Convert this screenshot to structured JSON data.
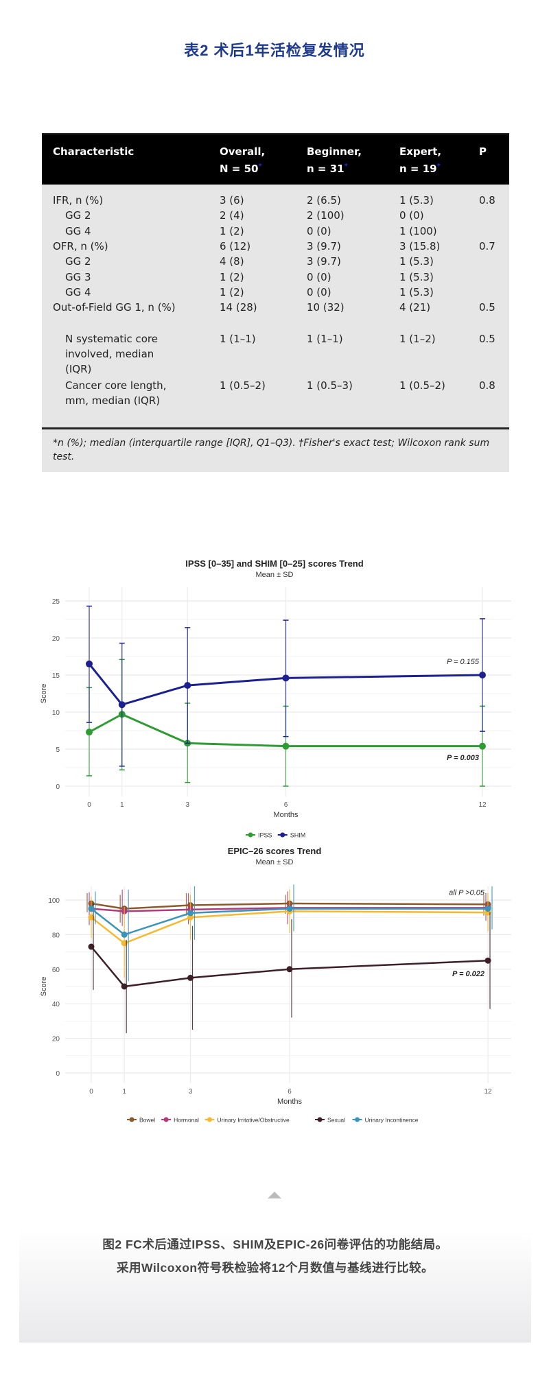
{
  "title": "表2  术后1年活检复发情况",
  "table": {
    "headers": [
      {
        "l1": "Characteristic",
        "l2": ""
      },
      {
        "l1": "Overall,",
        "l2": "N = 50",
        "mark": "*"
      },
      {
        "l1": "Beginner,",
        "l2": "n = 31",
        "mark": "*"
      },
      {
        "l1": "Expert,",
        "l2": "n = 19",
        "mark": "*"
      },
      {
        "l1": "P",
        "l2": "",
        "mark": "†"
      }
    ],
    "rows": [
      {
        "c": "IFR, n (%)",
        "o": "3 (6)",
        "b": "2 (6.5)",
        "e": "1 (5.3)",
        "p": "0.8",
        "indent": 0
      },
      {
        "c": "GG 2",
        "o": "2 (4)",
        "b": "2 (100)",
        "e": "0 (0)",
        "p": "",
        "indent": 1
      },
      {
        "c": "GG 4",
        "o": "1 (2)",
        "b": "0 (0)",
        "e": "1 (100)",
        "p": "",
        "indent": 1
      },
      {
        "c": "OFR, n (%)",
        "o": "6 (12)",
        "b": "3 (9.7)",
        "e": "3 (15.8)",
        "p": "0.7",
        "indent": 0
      },
      {
        "c": "GG 2",
        "o": "4 (8)",
        "b": "3 (9.7)",
        "e": "1 (5.3)",
        "p": "",
        "indent": 1
      },
      {
        "c": "GG 3",
        "o": "1 (2)",
        "b": "0 (0)",
        "e": "1 (5.3)",
        "p": "",
        "indent": 1
      },
      {
        "c": "GG 4",
        "o": "1 (2)",
        "b": "0 (0)",
        "e": "1 (5.3)",
        "p": "",
        "indent": 1
      },
      {
        "c": "Out-of-Field GG 1, n (%)",
        "o": "14 (28)",
        "b": "10 (32)",
        "e": "4 (21)",
        "p": "0.5",
        "indent": 0,
        "lines": 2
      },
      {
        "c": "N systematic core involved, median (IQR)",
        "o": "1 (1–1)",
        "b": "1 (1–1)",
        "e": "1 (1–2)",
        "p": "0.5",
        "indent": 1,
        "lines": 3
      },
      {
        "c": "Cancer core length, mm, median (IQR)",
        "o": "1 (0.5–2)",
        "b": "1 (0.5–3)",
        "e": "1 (0.5–2)",
        "p": "0.8",
        "indent": 1,
        "lines": 3
      }
    ],
    "footnote": "*n (%); median (interquartile range [IQR], Q1–Q3). †Fisher's exact test; Wilcoxon rank sum test."
  },
  "chart_data": [
    {
      "type": "line",
      "title": "IPSS [0–35] and SHIM [0–25] scores Trend",
      "subtitle": "Mean ± SD",
      "xlabel": "Months",
      "ylabel": "Score",
      "x": [
        0,
        1,
        3,
        6,
        12
      ],
      "ylim": [
        0,
        25
      ],
      "yticks": [
        0,
        5,
        10,
        15,
        20,
        25
      ],
      "grid": true,
      "legend": "bottom",
      "series": [
        {
          "name": "IPSS",
          "color": "#2e9b33",
          "values": [
            7.3,
            9.7,
            5.8,
            5.4,
            5.4
          ],
          "lower": [
            1.4,
            2.2,
            0.5,
            0,
            0
          ],
          "upper": [
            13.3,
            17.1,
            11.2,
            10.8,
            10.8
          ]
        },
        {
          "name": "SHIM",
          "color": "#1b1f8f",
          "values": [
            16.5,
            11.0,
            13.6,
            14.6,
            15.0
          ],
          "lower": [
            8.6,
            2.7,
            5.8,
            6.7,
            7.4
          ],
          "upper": [
            24.3,
            19.3,
            21.4,
            22.4,
            22.6
          ]
        }
      ],
      "annotations": [
        {
          "text": "P = 0.155",
          "y": 16.5,
          "bold": false
        },
        {
          "text": "P = 0.003",
          "y": 3.5,
          "bold": true
        }
      ]
    },
    {
      "type": "line",
      "title": "EPIC–26 scores Trend",
      "subtitle": "Mean ± SD",
      "xlabel": "Months",
      "ylabel": "Score",
      "x": [
        0,
        1,
        3,
        6,
        12
      ],
      "ylim": [
        0,
        110
      ],
      "yticks": [
        0,
        20,
        40,
        60,
        80,
        100
      ],
      "grid": true,
      "legend": "bottom",
      "series": [
        {
          "name": "Bowel",
          "color": "#8b5a2b",
          "values": [
            98,
            95,
            97,
            98,
            97.5
          ],
          "lower": [
            93,
            87,
            91,
            92,
            91
          ],
          "upper": [
            104,
            103,
            104,
            103,
            103
          ]
        },
        {
          "name": "Hormonal",
          "color": "#b03a7a",
          "values": [
            95,
            93.5,
            94.5,
            95.5,
            95.5
          ],
          "lower": [
            85.5,
            85,
            86,
            86,
            88
          ],
          "upper": [
            104.5,
            106,
            104,
            105,
            104
          ]
        },
        {
          "name": "Urinary Irritative/Obstructive",
          "color": "#f5b82e",
          "values": [
            90,
            75,
            90,
            93.5,
            92.8
          ],
          "lower": [
            78,
            55,
            77,
            81,
            82
          ],
          "upper": [
            102,
            96,
            103,
            106,
            104
          ]
        },
        {
          "name": "Sexual",
          "color": "#3d1f28",
          "values": [
            73,
            50,
            55,
            60,
            65
          ],
          "lower": [
            48,
            23,
            25,
            32,
            37
          ],
          "upper": [
            98,
            77,
            85,
            89,
            93
          ]
        },
        {
          "name": "Urinary Incontinence",
          "color": "#3a93b8",
          "values": [
            95,
            80,
            92.5,
            95,
            95
          ],
          "lower": [
            86,
            53,
            77,
            82,
            83
          ],
          "upper": [
            105,
            106,
            108,
            109,
            108
          ]
        }
      ],
      "annotations": [
        {
          "text": "all P >0.05",
          "y": 103,
          "bold": false
        },
        {
          "text": "P = 0.022",
          "y": 56,
          "bold": true
        }
      ]
    }
  ],
  "caption": {
    "line1": "图2 FC术后通过IPSS、SHIM及EPIC-26问卷评估的功能结局。",
    "line2": "采用Wilcoxon符号秩检验将12个月数值与基线进行比较。"
  }
}
